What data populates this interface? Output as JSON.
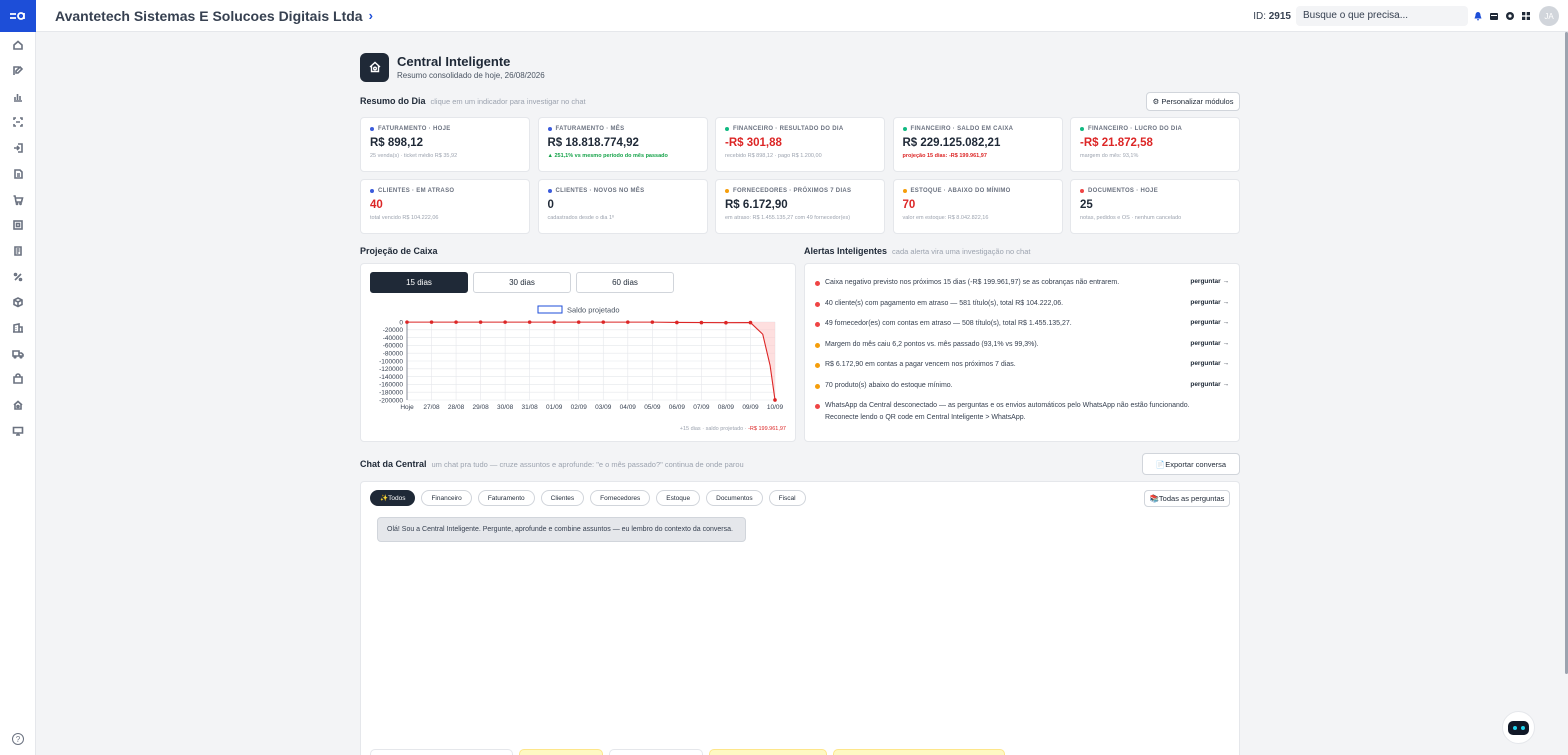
{
  "sidebar": {
    "logo": "ea",
    "icons": [
      "home-icon",
      "edit-icon",
      "chart-icon",
      "scan-icon",
      "login-icon",
      "document-icon",
      "cart-icon",
      "qr-icon",
      "invoice-icon",
      "percent-icon",
      "box-icon",
      "building-icon",
      "truck-icon",
      "bag-icon",
      "house-gear-icon",
      "monitor-icon"
    ],
    "help": "?"
  },
  "topbar": {
    "company": "Avantetech Sistemas E Solucoes Digitais Ltda",
    "id_label": "ID:",
    "id_value": "2915",
    "search_placeholder": "Busque o que precisa...",
    "avatar": "JA"
  },
  "header": {
    "title": "Central Inteligente",
    "subtitle": "Resumo consolidado de hoje, 26/08/2026"
  },
  "resumo": {
    "title": "Resumo do Dia",
    "hint": "clique em um indicador para investigar no chat",
    "customize": "⚙ Personalizar módulos"
  },
  "kpis": [
    {
      "label": "FATURAMENTO · HOJE",
      "value": "R$ 898,12",
      "sub": "25 venda(s) · ticket médio R$ 35,92",
      "dot": "#3b5bdb",
      "value_style": "",
      "sub_style": ""
    },
    {
      "label": "FATURAMENTO · MÊS",
      "value": "R$ 18.818.774,92",
      "sub": "▲ 251,1% vs mesmo período do mês passado",
      "dot": "#3b5bdb",
      "value_style": "",
      "sub_style": "green"
    },
    {
      "label": "FINANCEIRO · RESULTADO DO DIA",
      "value": "-R$ 301,88",
      "sub": "recebido R$ 898,12 · pago R$ 1.200,00",
      "dot": "#10b981",
      "value_style": "red",
      "sub_style": ""
    },
    {
      "label": "FINANCEIRO · SALDO EM CAIXA",
      "value": "R$ 229.125.082,21",
      "sub": "projeção 15 dias: -R$ 199.961,97",
      "dot": "#10b981",
      "value_style": "",
      "sub_style": "red"
    },
    {
      "label": "FINANCEIRO · LUCRO DO DIA",
      "value": "-R$ 21.872,58",
      "sub": "margem do mês: 93,1%",
      "dot": "#10b981",
      "value_style": "red",
      "sub_style": ""
    },
    {
      "label": "CLIENTES · EM ATRASO",
      "value": "40",
      "sub": "total vencido R$ 104.222,06",
      "dot": "#3b5bdb",
      "value_style": "red",
      "sub_style": ""
    },
    {
      "label": "CLIENTES · NOVOS NO MÊS",
      "value": "0",
      "sub": "cadastrados desde o dia 1º",
      "dot": "#3b5bdb",
      "value_style": "",
      "sub_style": ""
    },
    {
      "label": "FORNECEDORES · PRÓXIMOS 7 DIAS",
      "value": "R$ 6.172,90",
      "sub": "em atraso: R$ 1.455.135,27 com 49 fornecedor(es)",
      "dot": "#f59e0b",
      "value_style": "",
      "sub_style": ""
    },
    {
      "label": "ESTOQUE · ABAIXO DO MÍNIMO",
      "value": "70",
      "sub": "valor em estoque: R$ 8.042.822,16",
      "dot": "#f59e0b",
      "value_style": "red",
      "sub_style": ""
    },
    {
      "label": "DOCUMENTOS · HOJE",
      "value": "25",
      "sub": "notas, pedidos e OS · nenhum cancelado",
      "dot": "#ef4444",
      "value_style": "",
      "sub_style": ""
    }
  ],
  "projecao": {
    "title": "Projeção de Caixa",
    "tabs": [
      "15 dias",
      "30 dias",
      "60 dias"
    ],
    "footer_prefix": "+15 dias · saldo projetado",
    "footer_value": "-R$ 199.961,97"
  },
  "chart_data": {
    "type": "line",
    "legend": [
      "Saldo projetado"
    ],
    "x": [
      "Hoje",
      "27/08",
      "28/08",
      "29/08",
      "30/08",
      "31/08",
      "01/09",
      "02/09",
      "03/09",
      "04/09",
      "05/09",
      "06/09",
      "07/09",
      "08/09",
      "09/09",
      "10/09"
    ],
    "series": [
      {
        "name": "Saldo projetado",
        "values": [
          -301.88,
          -301.88,
          -301.88,
          -301.88,
          -301.88,
          -301.88,
          -301.88,
          -301.88,
          -301.88,
          -301.88,
          -301.88,
          -1200,
          -1500,
          -1800,
          -1500,
          -199961.97
        ]
      }
    ],
    "yticks": [
      "0",
      "-20000",
      "-40000",
      "-60000",
      "-80000",
      "-100000",
      "-120000",
      "-140000",
      "-160000",
      "-180000",
      "-200000"
    ],
    "ylim": [
      -200000,
      0
    ],
    "line_color": "#dc2626",
    "fill_color": "#fecaca",
    "grid": true
  },
  "alertas": {
    "title": "Alertas Inteligentes",
    "hint": "cada alerta vira uma investigação no chat",
    "ask_label": "perguntar →",
    "items": [
      {
        "text": "Caixa negativo previsto nos próximos 15 dias (-R$ 199.961,97) se as cobranças não entrarem.",
        "color": "#ef4444",
        "ask": true
      },
      {
        "text": "40 cliente(s) com pagamento em atraso — 581 título(s), total R$ 104.222,06.",
        "color": "#ef4444",
        "ask": true
      },
      {
        "text": "49 fornecedor(es) com contas em atraso — 508 título(s), total R$ 1.455.135,27.",
        "color": "#ef4444",
        "ask": true
      },
      {
        "text": "Margem do mês caiu 6,2 pontos vs. mês passado (93,1% vs 99,3%).",
        "color": "#f59e0b",
        "ask": true
      },
      {
        "text": "R$ 6.172,90 em contas a pagar vencem nos próximos 7 dias.",
        "color": "#f59e0b",
        "ask": true
      },
      {
        "text": "70 produto(s) abaixo do estoque mínimo.",
        "color": "#f59e0b",
        "ask": true
      },
      {
        "text": "WhatsApp da Central desconectado — as perguntas e os envios automáticos pelo WhatsApp não estão funcionando. Reconecte lendo o QR code em Central Inteligente > WhatsApp.",
        "color": "#ef4444",
        "ask": false
      }
    ]
  },
  "chat": {
    "title": "Chat da Central",
    "hint": "um chat pra tudo — cruze assuntos e aprofunde: \"e o mês passado?\" continua de onde parou",
    "export": "📄Exportar conversa",
    "chips": [
      "✨Todos",
      "Financeiro",
      "Faturamento",
      "Clientes",
      "Fornecedores",
      "Estoque",
      "Documentos",
      "Fiscal"
    ],
    "all_questions": "📚Todas as perguntas",
    "greeting": "Olá! Sou a Central Inteligente. Pergunte, aprofunde e combine assuntos — eu lembro do contexto da conversa."
  }
}
